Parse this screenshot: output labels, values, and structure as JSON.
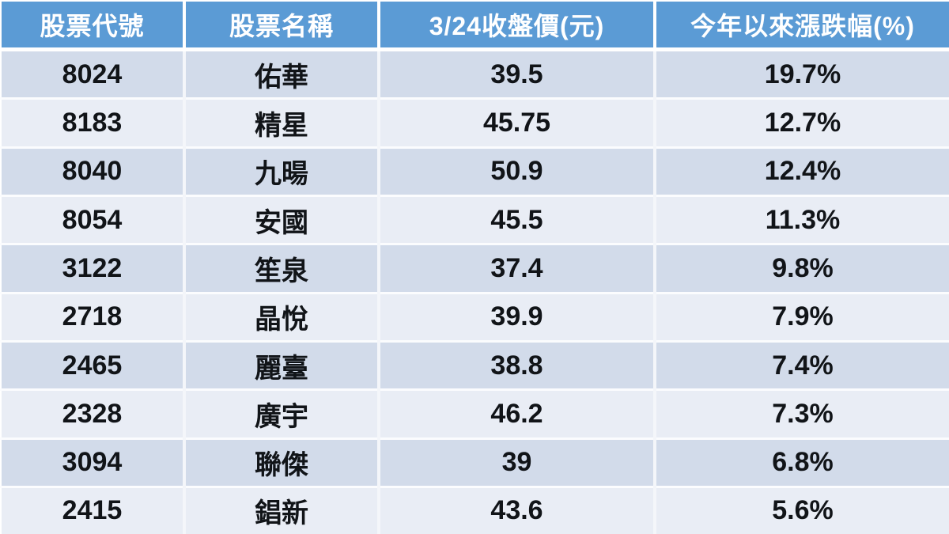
{
  "table": {
    "columns": [
      {
        "key": "code",
        "label": "股票代號"
      },
      {
        "key": "name",
        "label": "股票名稱"
      },
      {
        "key": "price",
        "label": "3/24收盤價(元)"
      },
      {
        "key": "change",
        "label": "今年以來漲跌幅(%)"
      }
    ],
    "rows": [
      {
        "code": "8024",
        "name": "佑華",
        "price": "39.5",
        "change": "19.7%"
      },
      {
        "code": "8183",
        "name": "精星",
        "price": "45.75",
        "change": "12.7%"
      },
      {
        "code": "8040",
        "name": "九暘",
        "price": "50.9",
        "change": "12.4%"
      },
      {
        "code": "8054",
        "name": "安國",
        "price": "45.5",
        "change": "11.3%"
      },
      {
        "code": "3122",
        "name": "笙泉",
        "price": "37.4",
        "change": "9.8%"
      },
      {
        "code": "2718",
        "name": "晶悅",
        "price": "39.9",
        "change": "7.9%"
      },
      {
        "code": "2465",
        "name": "麗臺",
        "price": "38.8",
        "change": "7.4%"
      },
      {
        "code": "2328",
        "name": "廣宇",
        "price": "46.2",
        "change": "7.3%"
      },
      {
        "code": "3094",
        "name": "聯傑",
        "price": "39",
        "change": "6.8%"
      },
      {
        "code": "2415",
        "name": "錩新",
        "price": "43.6",
        "change": "5.6%"
      }
    ]
  },
  "colors": {
    "header_bg": "#5B9BD5",
    "header_text": "#FFFFFF",
    "band_dark_bg": "#D2DBEA",
    "band_light_bg": "#E9EDF5",
    "body_text": "#111418",
    "divider": "#FFFFFF"
  },
  "chart_data": {
    "type": "table",
    "title": "",
    "columns": [
      "股票代號",
      "股票名稱",
      "3/24收盤價(元)",
      "今年以來漲跌幅(%)"
    ],
    "rows": [
      [
        "8024",
        "佑華",
        39.5,
        "19.7%"
      ],
      [
        "8183",
        "精星",
        45.75,
        "12.7%"
      ],
      [
        "8040",
        "九暘",
        50.9,
        "12.4%"
      ],
      [
        "8054",
        "安國",
        45.5,
        "11.3%"
      ],
      [
        "3122",
        "笙泉",
        37.4,
        "9.8%"
      ],
      [
        "2718",
        "晶悅",
        39.9,
        "7.9%"
      ],
      [
        "2465",
        "麗臺",
        38.8,
        "7.4%"
      ],
      [
        "2328",
        "廣宇",
        46.2,
        "7.3%"
      ],
      [
        "3094",
        "聯傑",
        39,
        "6.8%"
      ],
      [
        "2415",
        "錩新",
        43.6,
        "5.6%"
      ]
    ],
    "layout": {
      "banded_rows": true,
      "header_style": "blue-solid",
      "value_alignment": "center"
    }
  }
}
